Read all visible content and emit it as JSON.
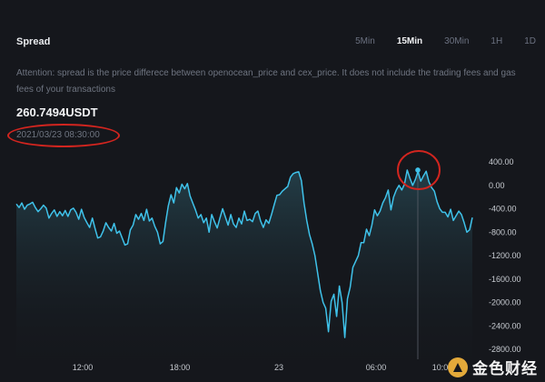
{
  "header": {
    "title": "Spread",
    "tabs": [
      {
        "label": "5Min",
        "active": false
      },
      {
        "label": "15Min",
        "active": true
      },
      {
        "label": "30Min",
        "active": false
      },
      {
        "label": "1H",
        "active": false
      },
      {
        "label": "1D",
        "active": false
      }
    ]
  },
  "notice": "Attention: spread is the price differece between openocean_price and cex_price. It does not include the trading fees and gas fees of your transactions",
  "price": "260.7494USDT",
  "timestamp": "2021/03/23 08:30:00",
  "watermark": {
    "text": "金色财经"
  },
  "colors": {
    "line": "#3fc2ea",
    "annotation": "#d2251f",
    "background": "#15171c"
  },
  "chart_data": {
    "type": "area",
    "title": "",
    "xlabel": "",
    "ylabel": "",
    "ylim": [
      -2800,
      400
    ],
    "y_ticks": [
      "400.00",
      "0.00",
      "-400.00",
      "-800.00",
      "-1200.00",
      "-1600.00",
      "-2000.00",
      "-2400.00",
      "-2800.00"
    ],
    "x_ticks": [
      "12:00",
      "18:00",
      "23",
      "06:00",
      "10:00"
    ],
    "grid": false,
    "series": [
      {
        "name": "",
        "values": [
          -320,
          -380,
          -300,
          -410,
          -340,
          -320,
          -290,
          -380,
          -450,
          -400,
          -340,
          -390,
          -560,
          -480,
          -420,
          -530,
          -450,
          -520,
          -430,
          -530,
          -420,
          -390,
          -460,
          -580,
          -410,
          -550,
          -640,
          -720,
          -560,
          -740,
          -900,
          -880,
          -780,
          -640,
          -720,
          -780,
          -650,
          -820,
          -780,
          -900,
          -1020,
          -1000,
          -760,
          -680,
          -500,
          -580,
          -480,
          -600,
          -410,
          -610,
          -560,
          -700,
          -800,
          -1000,
          -960,
          -640,
          -350,
          -160,
          -300,
          -40,
          -130,
          20,
          -60,
          30,
          -180,
          -300,
          -420,
          -560,
          -500,
          -640,
          -560,
          -800,
          -500,
          -620,
          -730,
          -560,
          -400,
          -540,
          -680,
          -500,
          -660,
          -720,
          -560,
          -660,
          -440,
          -600,
          -580,
          -620,
          -480,
          -440,
          -610,
          -720,
          -590,
          -650,
          -500,
          -330,
          -170,
          -160,
          -100,
          -60,
          -20,
          140,
          200,
          220,
          230,
          80,
          -300,
          -600,
          -840,
          -1000,
          -1200,
          -1500,
          -1800,
          -2000,
          -2100,
          -2500,
          -1980,
          -1860,
          -2240,
          -1720,
          -2000,
          -2600,
          -1940,
          -1740,
          -1400,
          -1300,
          -1200,
          -980,
          -980,
          -750,
          -860,
          -680,
          -420,
          -520,
          -440,
          -300,
          -210,
          -80,
          -420,
          -200,
          -80,
          0,
          -80,
          20,
          260,
          120,
          0,
          100,
          240,
          70,
          160,
          240,
          60,
          -40,
          -100,
          -280,
          -400,
          -460,
          -460,
          -540,
          -410,
          -600,
          -520,
          -440,
          -500,
          -640,
          -800,
          -760,
          -550
        ]
      }
    ],
    "highlight": {
      "value": 260.7494,
      "time": "2021/03/23 08:30:00"
    }
  }
}
